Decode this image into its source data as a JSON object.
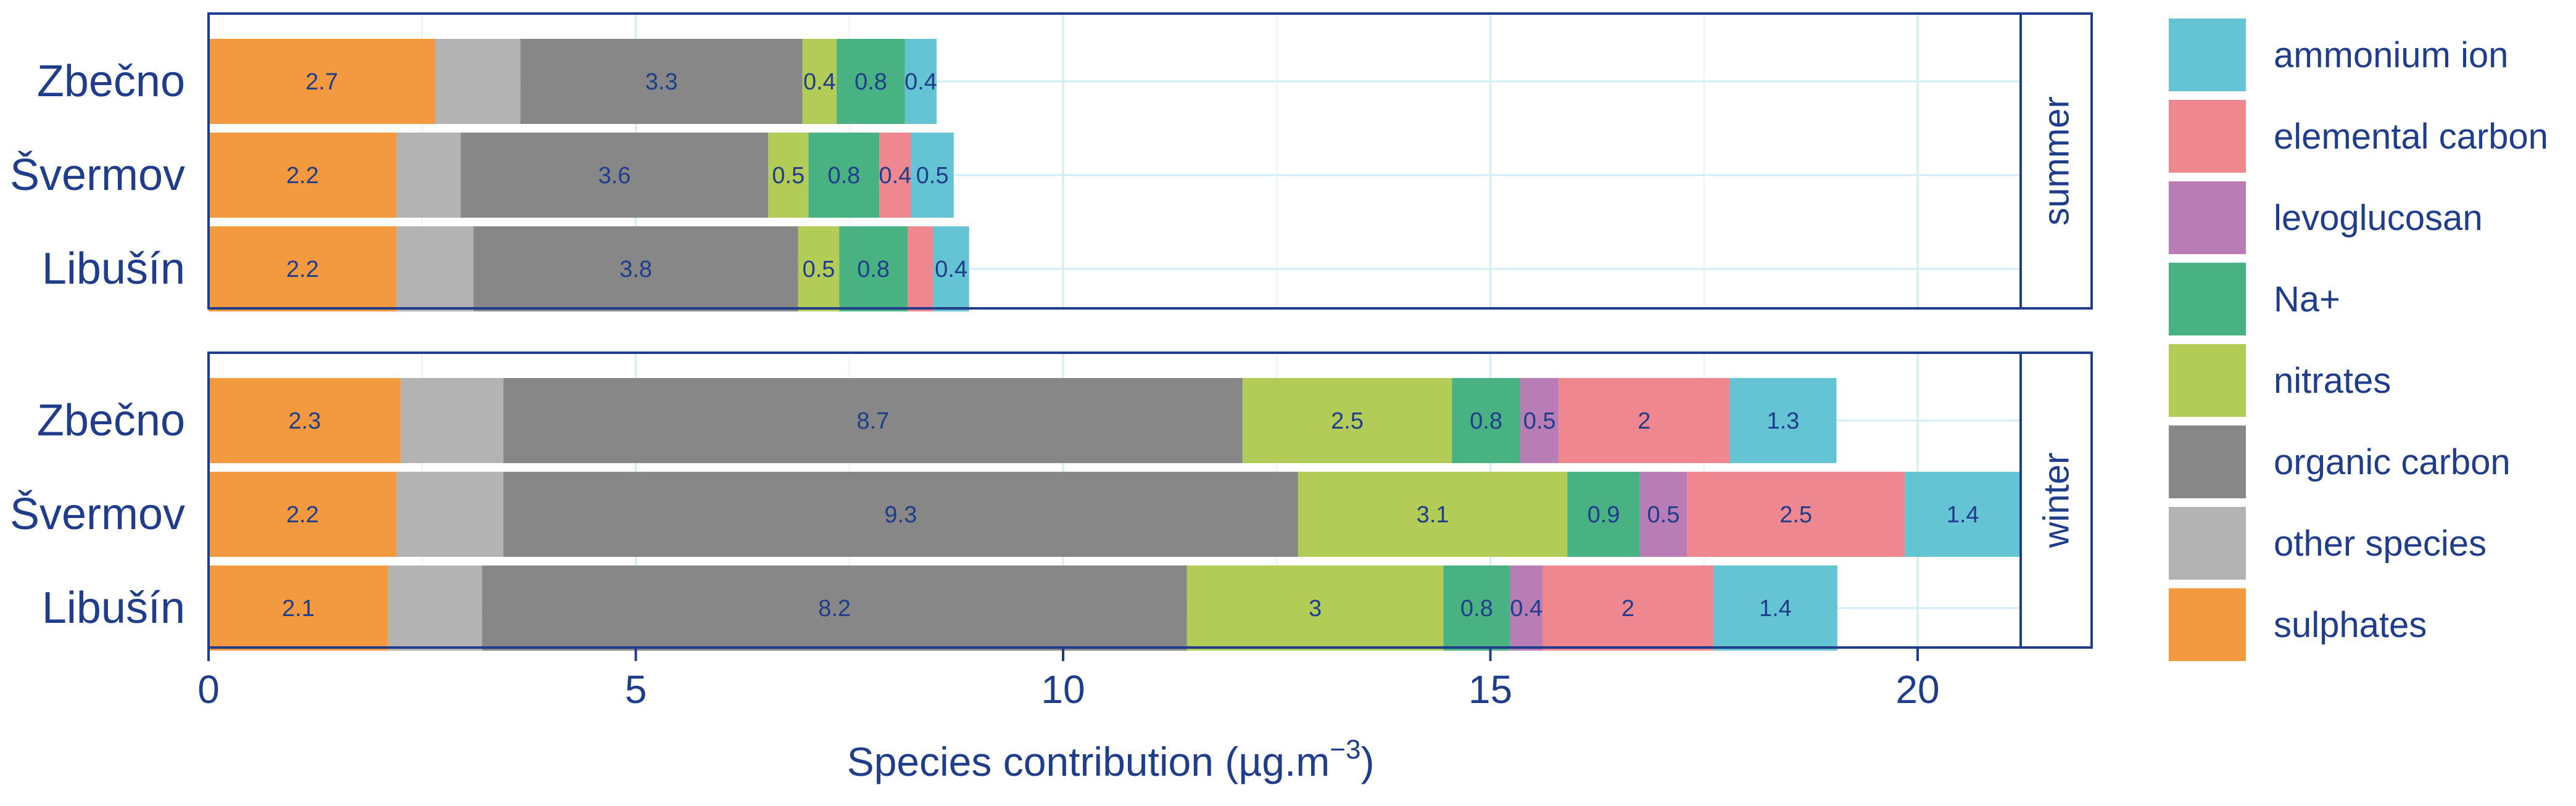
{
  "chart_data": {
    "type": "bar",
    "orientation": "horizontal",
    "stacked": true,
    "xlabel": "Species contribution (µg.m",
    "xlabel_superscript": "−3",
    "xlabel_close": ")",
    "xlim": [
      0,
      22
    ],
    "xticks": [
      0,
      5,
      10,
      15,
      20
    ],
    "species": [
      {
        "name": "sulphates",
        "color": "#F39A40"
      },
      {
        "name": "other species",
        "color": "#B3B3B3"
      },
      {
        "name": "organic carbon",
        "color": "#878787"
      },
      {
        "name": "nitrates",
        "color": "#B3CC58"
      },
      {
        "name": "Na+",
        "color": "#48B283"
      },
      {
        "name": "levoglucosan",
        "color": "#B97DB6"
      },
      {
        "name": "elemental carbon",
        "color": "#EF8790"
      },
      {
        "name": "ammonium ion",
        "color": "#64C4D3"
      }
    ],
    "legend_order": [
      "ammonium ion",
      "elemental carbon",
      "levoglucosan",
      "Na+",
      "nitrates",
      "organic carbon",
      "other species",
      "sulphates"
    ],
    "panels": [
      {
        "name": "summer",
        "sites": [
          {
            "site": "Zbečno",
            "values": [
              2.65,
              1.0,
              3.3,
              0.4,
              0.8,
              0.0,
              0.0,
              0.37
            ],
            "labels": [
              "2.7",
              "",
              "3.3",
              "0.4",
              "0.8",
              "",
              "",
              "0.4"
            ]
          },
          {
            "site": "Švermov",
            "values": [
              2.2,
              0.75,
              3.6,
              0.47,
              0.83,
              0.0,
              0.37,
              0.5
            ],
            "labels": [
              "2.2",
              "",
              "3.6",
              "0.5",
              "0.8",
              "",
              "0.4",
              "0.5"
            ]
          },
          {
            "site": "Libušín",
            "values": [
              2.2,
              0.9,
              3.8,
              0.48,
              0.8,
              0.0,
              0.3,
              0.42
            ],
            "labels": [
              "2.2",
              "",
              "3.8",
              "0.5",
              "0.8",
              "",
              "",
              "0.4"
            ]
          }
        ]
      },
      {
        "name": "winter",
        "sites": [
          {
            "site": "Zbečno",
            "values": [
              2.25,
              1.2,
              8.65,
              2.45,
              0.8,
              0.45,
              2.0,
              1.25
            ],
            "labels": [
              "2.3",
              "",
              "8.7",
              "2.5",
              "0.8",
              "0.5",
              "2",
              "1.3"
            ]
          },
          {
            "site": "Švermov",
            "values": [
              2.2,
              1.25,
              9.3,
              3.15,
              0.85,
              0.55,
              2.55,
              1.42
            ],
            "labels": [
              "2.2",
              "",
              "9.3",
              "3.1",
              "0.9",
              "0.5",
              "2.5",
              "1.4"
            ]
          },
          {
            "site": "Libušín",
            "values": [
              2.1,
              1.1,
              8.25,
              3.0,
              0.78,
              0.38,
              2.0,
              1.45
            ],
            "labels": [
              "2.1",
              "",
              "8.2",
              "3",
              "0.8",
              "0.4",
              "2",
              "1.4"
            ]
          }
        ]
      }
    ]
  }
}
